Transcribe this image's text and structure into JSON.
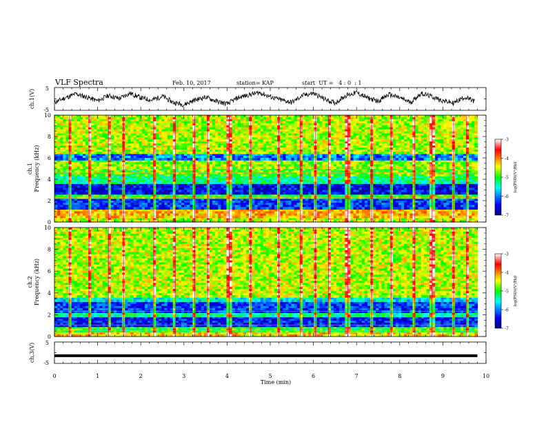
{
  "header": {
    "title": "VLF Spectra",
    "date": "Feb. 10, 2017",
    "station": "station= KAP",
    "start": "start  UT =   4 : 0  : 1"
  },
  "chart_data": [
    {
      "type": "line",
      "panel": "ch1_waveform",
      "ylabel": "ch.1(V)",
      "yticks": [
        "5",
        "-5"
      ],
      "ylim": [
        -5,
        5
      ],
      "xlim": [
        0,
        10
      ],
      "description_note": "",
      "x": [
        0,
        0.25,
        0.5,
        0.75,
        1,
        1.25,
        1.5,
        1.75,
        2,
        2.25,
        2.5,
        2.75,
        3,
        3.25,
        3.5,
        3.75,
        4,
        4.25,
        4.5,
        4.75,
        5,
        5.25,
        5.5,
        5.75,
        6,
        6.25,
        6.5,
        6.75,
        7,
        7.25,
        7.5,
        7.75,
        8,
        8.25,
        8.5,
        8.75,
        9,
        9.25,
        9.5,
        9.75
      ],
      "y": [
        -1.5,
        0.5,
        2.2,
        0.8,
        -0.8,
        1.5,
        0.2,
        2.5,
        0.5,
        -0.5,
        1.2,
        -1.5,
        -2.5,
        -0.5,
        0.8,
        -1.0,
        -2.2,
        0.5,
        1.8,
        2.8,
        1.0,
        -0.5,
        -1.5,
        1.5,
        2.5,
        0.0,
        -1.8,
        1.5,
        2.8,
        0.5,
        -1.0,
        2.0,
        0.5,
        -1.5,
        2.5,
        1.0,
        -0.8,
        -1.8,
        0.8,
        -1.2
      ],
      "color": "#000000"
    },
    {
      "type": "heatmap",
      "panel": "ch1_spectrogram",
      "ylabel": "ch.1 Frequency (kHz)",
      "yticks": [
        "0",
        "2",
        "4",
        "6",
        "8",
        "10"
      ],
      "ylim": [
        0,
        10
      ],
      "xlim": [
        0,
        10
      ],
      "colorbar": {
        "label": "log(PSD)(V²/Hz)",
        "ticks": [
          "-3",
          "-4",
          "-5",
          "-6",
          "-7"
        ],
        "range": [
          -7,
          -3
        ]
      },
      "bands": [
        {
          "f": [
            0.0,
            0.4
          ],
          "level": -4.6
        },
        {
          "f": [
            0.4,
            1.2
          ],
          "level": -4.2
        },
        {
          "f": [
            1.2,
            2.2
          ],
          "level": -6.3
        },
        {
          "f": [
            2.2,
            2.6
          ],
          "level": -5.0
        },
        {
          "f": [
            2.6,
            3.6
          ],
          "level": -6.5
        },
        {
          "f": [
            3.6,
            4.3
          ],
          "level": -5.3
        },
        {
          "f": [
            4.3,
            5.0
          ],
          "level": -4.9
        },
        {
          "f": [
            5.0,
            5.8
          ],
          "level": -4.7
        },
        {
          "f": [
            5.8,
            6.4
          ],
          "level": -6.0
        },
        {
          "f": [
            6.4,
            10.0
          ],
          "level": -4.6
        }
      ],
      "bursts_min": [
        0.35,
        0.8,
        1.25,
        1.6,
        2.3,
        2.8,
        3.25,
        3.55,
        4.05,
        4.55,
        5.2,
        5.7,
        6.05,
        6.35,
        6.8,
        7.35,
        7.8,
        8.35,
        8.75,
        9.25,
        9.55
      ]
    },
    {
      "type": "heatmap",
      "panel": "ch2_spectrogram",
      "ylabel": "ch.2 Frequency (kHz)",
      "yticks": [
        "0",
        "2",
        "4",
        "6",
        "8",
        "10"
      ],
      "ylim": [
        0,
        10
      ],
      "xlim": [
        0,
        10
      ],
      "colorbar": {
        "label": "log(PSD)(V²/Hz)",
        "ticks": [
          "-3",
          "-4",
          "-5",
          "-6",
          "-7"
        ],
        "range": [
          -7,
          -3
        ]
      },
      "bands": [
        {
          "f": [
            0.0,
            0.4
          ],
          "level": -4.3
        },
        {
          "f": [
            0.4,
            0.9
          ],
          "level": -5.0
        },
        {
          "f": [
            0.9,
            1.8
          ],
          "level": -6.4
        },
        {
          "f": [
            1.8,
            2.2
          ],
          "level": -5.3
        },
        {
          "f": [
            2.2,
            3.2
          ],
          "level": -6.3
        },
        {
          "f": [
            3.2,
            3.6
          ],
          "level": -5.6
        },
        {
          "f": [
            3.6,
            10.0
          ],
          "level": -4.6
        }
      ],
      "bursts_min": [
        0.35,
        0.8,
        1.25,
        1.6,
        2.3,
        2.8,
        3.25,
        3.55,
        4.05,
        4.55,
        5.2,
        5.7,
        6.05,
        6.35,
        6.8,
        7.35,
        7.8,
        8.35,
        8.75,
        9.25,
        9.55
      ]
    },
    {
      "type": "line",
      "panel": "ch3_waveform",
      "ylabel": "ch.3(V)",
      "yticks": [
        "5",
        "-5"
      ],
      "ylim": [
        -5,
        5
      ],
      "xlim": [
        0,
        10
      ],
      "x": [
        0,
        9.8
      ],
      "y": [
        -1.4,
        -1.4
      ],
      "color": "#000000"
    }
  ],
  "xaxis": {
    "label": "Time (min)",
    "ticks": [
      "0",
      "1",
      "2",
      "3",
      "4",
      "5",
      "6",
      "7",
      "8",
      "9",
      "10"
    ],
    "range": [
      0,
      10
    ],
    "data_end": 9.8
  }
}
